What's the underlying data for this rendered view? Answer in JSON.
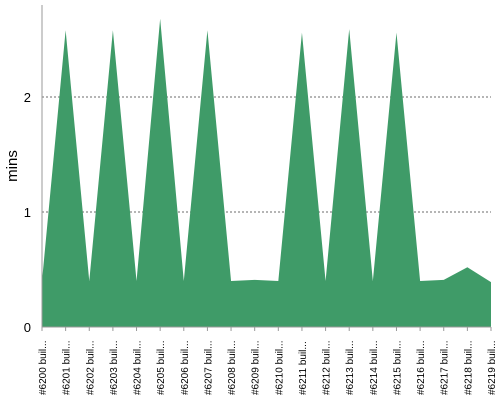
{
  "chart_data": {
    "type": "area",
    "title": "",
    "xlabel": "",
    "ylabel": "mins",
    "categories": [
      "#6200 buil...",
      "#6201 buil...",
      "#6202 buil...",
      "#6203 buil...",
      "#6204 buil...",
      "#6205 buil...",
      "#6206 buil...",
      "#6207 buil...",
      "#6208 buil...",
      "#6209 buil...",
      "#6210 buil...",
      "#6211 buil...",
      "#6212 buil...",
      "#6213 buil...",
      "#6214 buil...",
      "#6215 buil...",
      "#6216 buil...",
      "#6217 buil...",
      "#6218 buil...",
      "#6219 buil..."
    ],
    "series": [
      {
        "values": [
          0.4,
          2.58,
          0.4,
          2.58,
          0.4,
          2.68,
          0.4,
          2.58,
          0.4,
          0.41,
          0.4,
          2.56,
          0.4,
          2.59,
          0.4,
          2.56,
          0.4,
          0.41,
          0.52,
          0.39
        ]
      }
    ],
    "ylim": [
      0,
      2.8
    ],
    "yticks": [
      0,
      1,
      2
    ],
    "grid": true,
    "colors": {
      "fill": "#3f9b68",
      "axis": "#999999",
      "grid": "#6b6b6b"
    }
  }
}
